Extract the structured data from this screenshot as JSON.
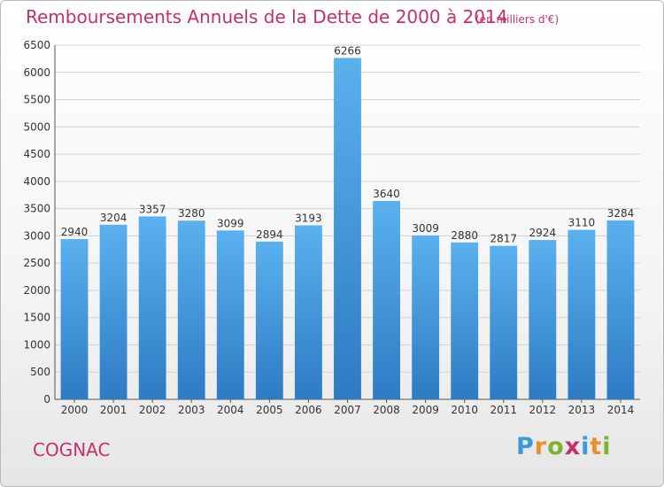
{
  "header": {
    "title": "Remboursements Annuels de la Dette de 2000 à 2014",
    "subtitle": "(en milliers d'€)"
  },
  "footer": {
    "city": "COGNAC",
    "logo_letters": [
      {
        "ch": "P",
        "color": "#3a9ad9"
      },
      {
        "ch": "r",
        "color": "#e8902a"
      },
      {
        "ch": "o",
        "color": "#7cb32a"
      },
      {
        "ch": "x",
        "color": "#c4306b"
      },
      {
        "ch": "i",
        "color": "#3a9ad9"
      },
      {
        "ch": "t",
        "color": "#e8902a"
      },
      {
        "ch": "i",
        "color": "#7cb32a"
      }
    ]
  },
  "colors": {
    "bar_light": "#5ab1ee",
    "bar_dark": "#2e7bc4",
    "title": "#c4306b",
    "text": "#333333",
    "grid": "#d2d2d2"
  },
  "chart_data": {
    "type": "bar",
    "title": "Remboursements Annuels de la Dette de 2000 à 2014",
    "subtitle": "(en milliers d'€)",
    "categories": [
      "2000",
      "2001",
      "2002",
      "2003",
      "2004",
      "2005",
      "2006",
      "2007",
      "2008",
      "2009",
      "2010",
      "2011",
      "2012",
      "2013",
      "2014"
    ],
    "values": [
      2940,
      3204,
      3357,
      3280,
      3099,
      2894,
      3193,
      6266,
      3640,
      3009,
      2880,
      2817,
      2924,
      3110,
      3284
    ],
    "ylim": [
      0,
      6500
    ],
    "yticks": [
      0,
      500,
      1000,
      1500,
      2000,
      2500,
      3000,
      3500,
      4000,
      4500,
      5000,
      5500,
      6000,
      6500
    ],
    "grid": true,
    "data_labels": true
  }
}
